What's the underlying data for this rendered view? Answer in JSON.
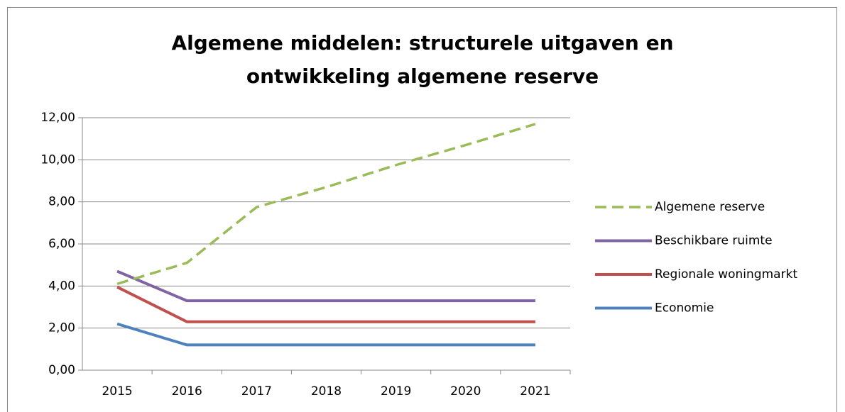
{
  "chart_data": {
    "type": "line",
    "title": [
      "Algemene middelen: structurele uitgaven en",
      "ontwikkeling algemene reserve"
    ],
    "categories": [
      "2015",
      "2016",
      "2017",
      "2018",
      "2019",
      "2020",
      "2021"
    ],
    "series": [
      {
        "name": "Algemene reserve",
        "color": "#9bbb59",
        "dashed": true,
        "values": [
          4.1,
          5.1,
          7.75,
          8.7,
          9.75,
          10.7,
          11.7
        ]
      },
      {
        "name": "Beschikbare ruimte",
        "color": "#8064a2",
        "values": [
          4.7,
          3.3,
          3.3,
          3.3,
          3.3,
          3.3,
          3.3
        ]
      },
      {
        "name": "Regionale woningmarkt",
        "color": "#c0504d",
        "values": [
          3.95,
          2.3,
          2.3,
          2.3,
          2.3,
          2.3,
          2.3
        ]
      },
      {
        "name": "Economie",
        "color": "#4f81bd",
        "values": [
          2.2,
          1.2,
          1.2,
          1.2,
          1.2,
          1.2,
          1.2
        ]
      }
    ],
    "ylim": [
      0,
      12
    ],
    "yticks": [
      {
        "value": 0,
        "label": "0,00"
      },
      {
        "value": 2,
        "label": "2,00"
      },
      {
        "value": 4,
        "label": "4,00"
      },
      {
        "value": 6,
        "label": "6,00"
      },
      {
        "value": 8,
        "label": "8,00"
      },
      {
        "value": 10,
        "label": "10,00"
      },
      {
        "value": 12,
        "label": "12,00"
      }
    ],
    "grid": true,
    "legend": "right"
  }
}
